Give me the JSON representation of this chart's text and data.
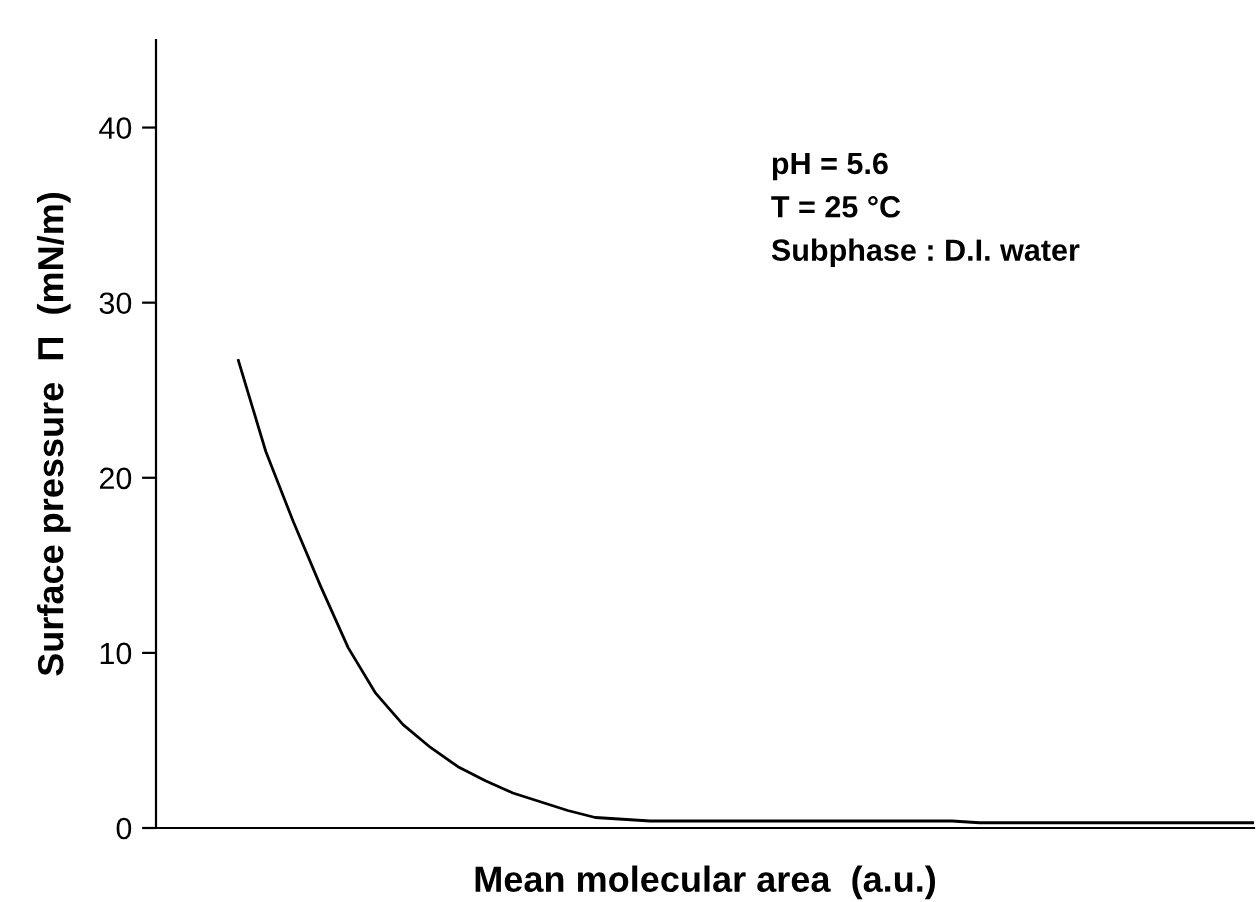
{
  "chart_data": {
    "type": "line",
    "xlabel": "Mean molecular area  (a.u.)",
    "ylabel": "Surface pressure  Π  (mN/m)",
    "categories": [
      null,
      null,
      null,
      null,
      null,
      null,
      null,
      null,
      null,
      null,
      null,
      null,
      null,
      null,
      null,
      null,
      null,
      null,
      null,
      null,
      null,
      null,
      null,
      null,
      null,
      null,
      null,
      null,
      null,
      null,
      null,
      null,
      null,
      null,
      null,
      null,
      null,
      null,
      null,
      null,
      null
    ],
    "series": [
      {
        "color": "#000000",
        "values": [
          null,
          null,
          null,
          26.7,
          21.5,
          17.5,
          13.8,
          10.3,
          7.7,
          5.9,
          4.6,
          3.5,
          2.7,
          2.0,
          1.5,
          1.0,
          0.6,
          0.5,
          0.4,
          0.4,
          0.4,
          0.4,
          0.4,
          0.4,
          0.4,
          0.4,
          0.4,
          0.4,
          0.4,
          0.4,
          0.3,
          0.3,
          0.3,
          0.3,
          0.3,
          0.3,
          0.3,
          0.3,
          0.3,
          0.3,
          0.3
        ]
      }
    ],
    "ylim": [
      0,
      45
    ],
    "yticks": [
      0,
      10,
      20,
      30,
      40
    ],
    "annotations": [
      "pH = 5.6",
      "T = 25 °C",
      "Subphase : D.I. water"
    ],
    "grid": false,
    "legend": false,
    "marker": "none",
    "line_style": "solid"
  }
}
